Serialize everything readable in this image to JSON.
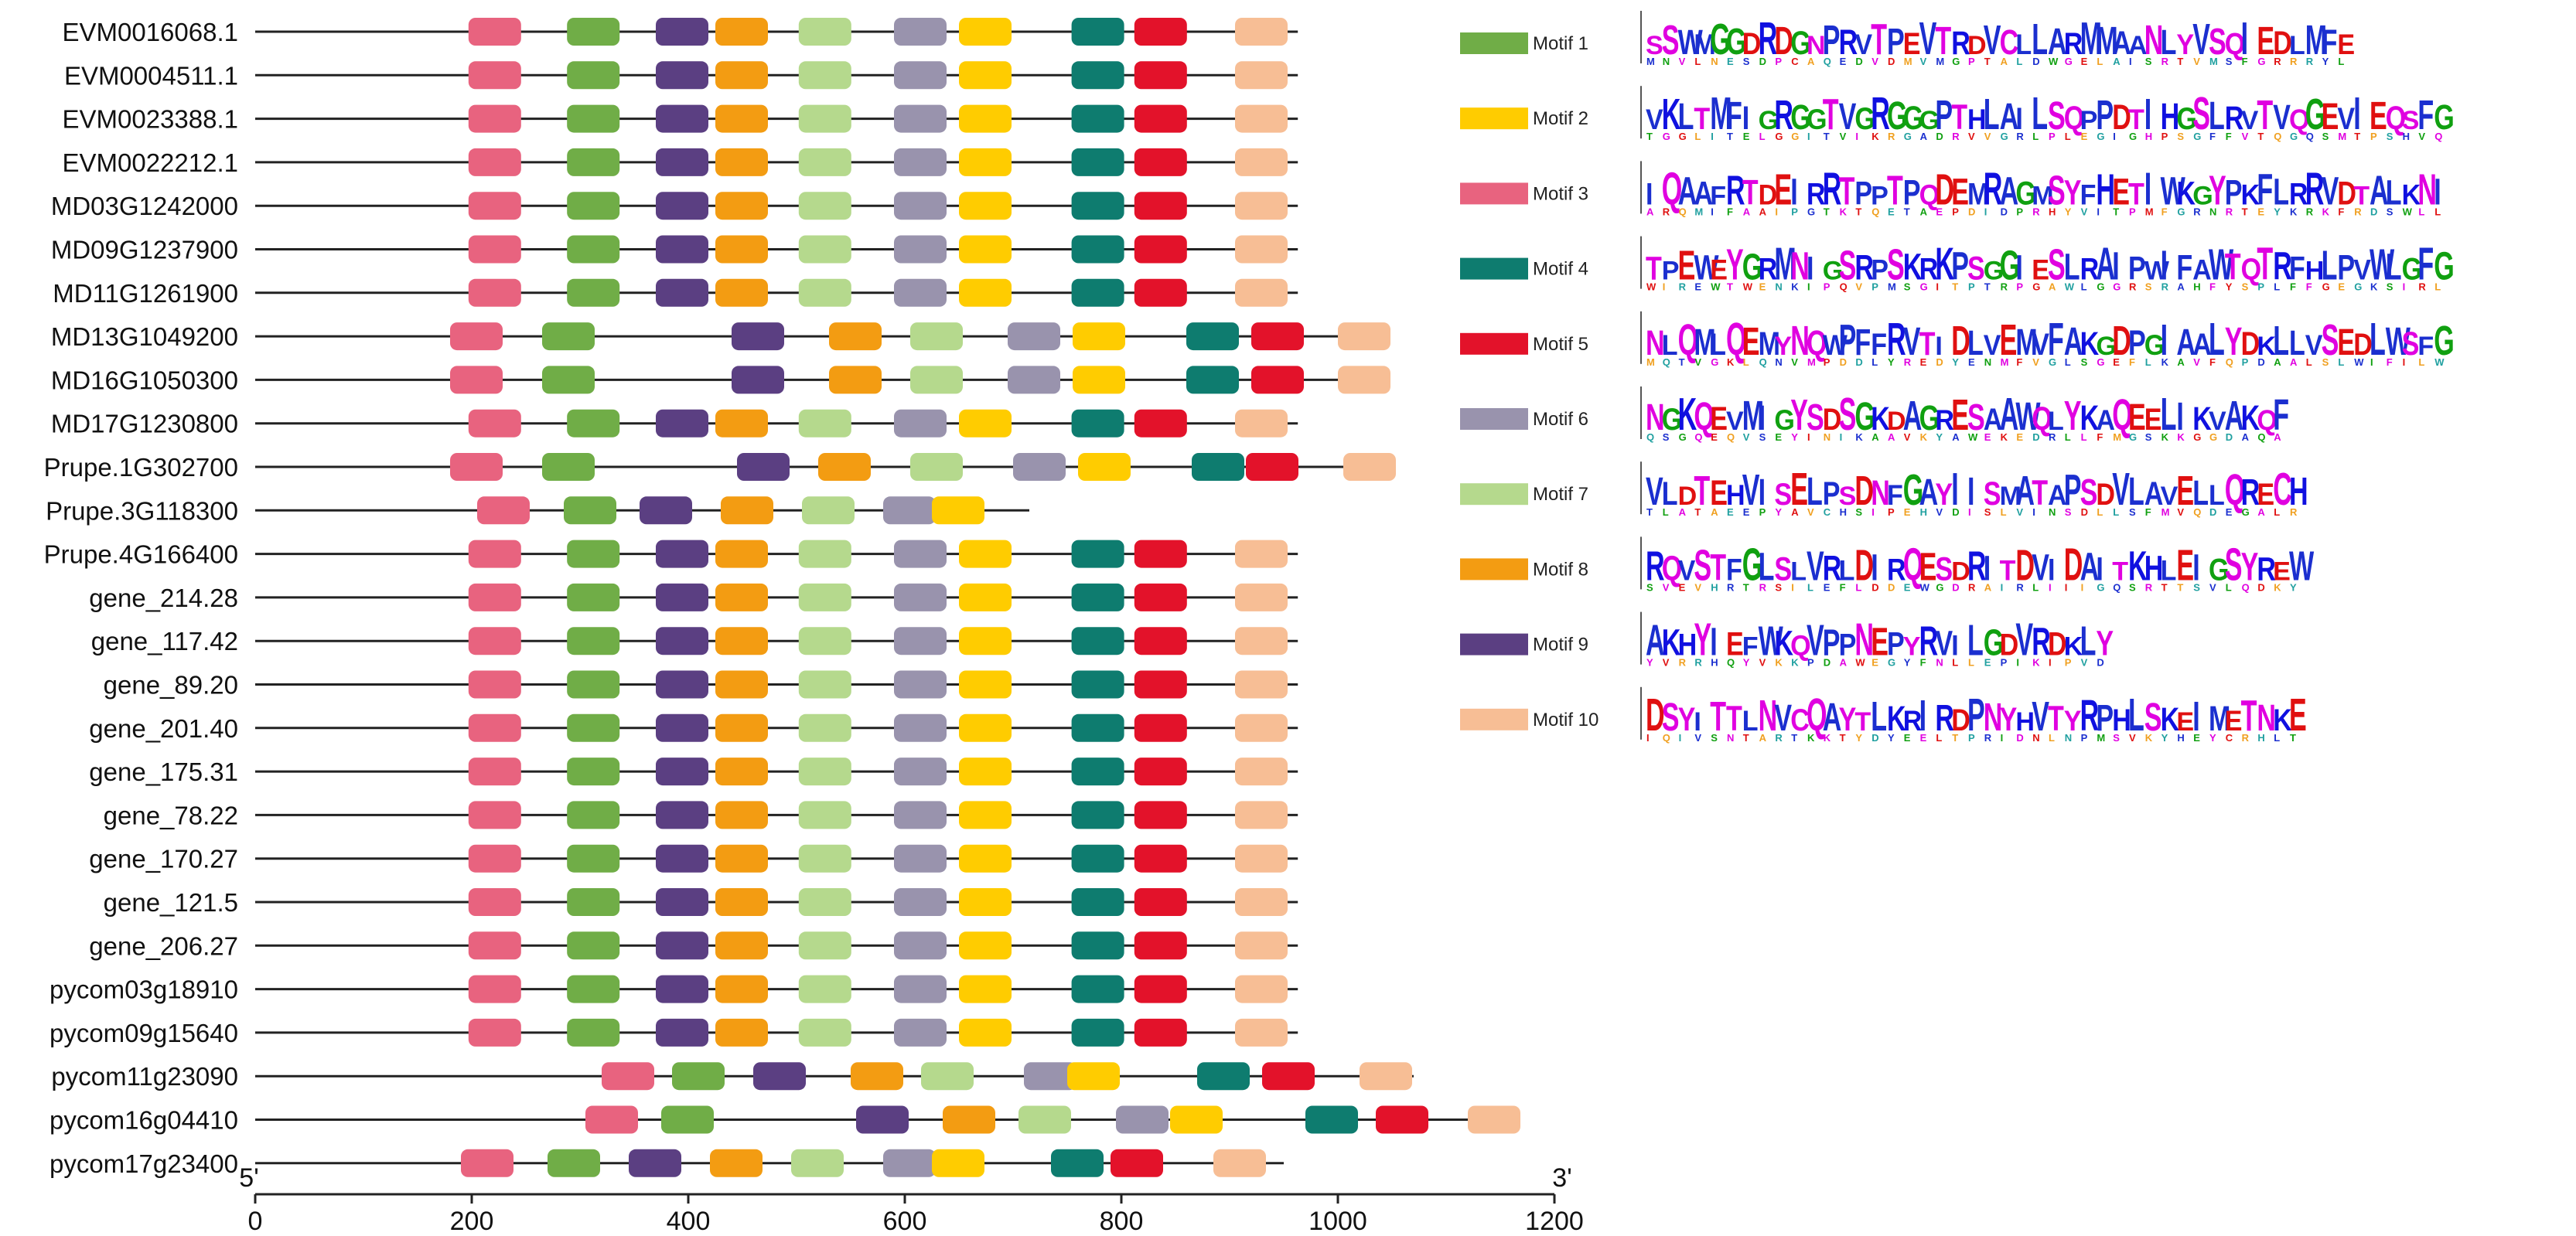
{
  "chart_data": {
    "type": "motif-diagram",
    "x_axis": {
      "min": 0,
      "max": 1200,
      "ticks": [
        0,
        200,
        400,
        600,
        800,
        1000,
        1200
      ],
      "end_labels": {
        "left": "5'",
        "right": "3'"
      }
    },
    "motifs": [
      {
        "id": 1,
        "name": "Motif 1",
        "color": "#70AD47",
        "seq": "SSWMGGDRDGNPRVTPEVTRDVCLLARMMAANLYVSQIEDLMFE"
      },
      {
        "id": 2,
        "name": "Motif 2",
        "color": "#FFCC00",
        "seq": "VKLTMFIGRGGTVGRGGGPTHLAILSQPPDTIHGSLRVTVQGEVIEQSFG"
      },
      {
        "id": 3,
        "name": "Motif 3",
        "color": "#E8637F",
        "seq": "IQAAFRTDEIRRTPPTPQDEMRAGMSYFHETIWKGYPKFLRRVDTALKNI"
      },
      {
        "id": 4,
        "name": "Motif 4",
        "color": "#0E7C6F",
        "seq": "TPEWEYGRMNIGSRPSKRKPSGGIESLRAIPWIFAWTQTRFHLPVWLGFG"
      },
      {
        "id": 5,
        "name": "Motif 5",
        "color": "#E3122A",
        "seq": "NLQMLQEMYNQWPFFRVTIDLVEMVFAKGDPGIAALYDKLLVSEDLWSFG"
      },
      {
        "id": 6,
        "name": "Motif 6",
        "color": "#9993AD",
        "seq": "NGKQEVMIGYSDSGKDAGRESAAWQLYKAQEELIKVAKQF"
      },
      {
        "id": 7,
        "name": "Motif 7",
        "color": "#B5D98D",
        "seq": "VLDTEHVISELPSDNFGAYIISMATAPSDVLAVELLQRECH"
      },
      {
        "id": 8,
        "name": "Motif 8",
        "color": "#F39C12",
        "seq": "RQVSTFGLSLVRLDIRQESDRITDVIDAITKHLEIGSYREW"
      },
      {
        "id": 9,
        "name": "Motif 9",
        "color": "#5B3F82",
        "seq": "AKHYIEFWKQVPPNEPYRVILGDVRDKLY"
      },
      {
        "id": 10,
        "name": "Motif 10",
        "color": "#F7BE95",
        "seq": "DSYITTLNVCQAYTLKRIRDPNYHVTYRPHLSKEIMETNKE"
      }
    ],
    "genes": [
      {
        "name": "EVM0016068.1",
        "length": 963,
        "motifs": [
          [
            3,
            197
          ],
          [
            1,
            288
          ],
          [
            9,
            370
          ],
          [
            8,
            425
          ],
          [
            7,
            502
          ],
          [
            6,
            590
          ],
          [
            2,
            650
          ],
          [
            4,
            754
          ],
          [
            5,
            812
          ],
          [
            10,
            905
          ]
        ]
      },
      {
        "name": "EVM0004511.1",
        "length": 963,
        "motifs": [
          [
            3,
            197
          ],
          [
            1,
            288
          ],
          [
            9,
            370
          ],
          [
            8,
            425
          ],
          [
            7,
            502
          ],
          [
            6,
            590
          ],
          [
            2,
            650
          ],
          [
            4,
            754
          ],
          [
            5,
            812
          ],
          [
            10,
            905
          ]
        ]
      },
      {
        "name": "EVM0023388.1",
        "length": 963,
        "motifs": [
          [
            3,
            197
          ],
          [
            1,
            288
          ],
          [
            9,
            370
          ],
          [
            8,
            425
          ],
          [
            7,
            502
          ],
          [
            6,
            590
          ],
          [
            2,
            650
          ],
          [
            4,
            754
          ],
          [
            5,
            812
          ],
          [
            10,
            905
          ]
        ]
      },
      {
        "name": "EVM0022212.1",
        "length": 963,
        "motifs": [
          [
            3,
            197
          ],
          [
            1,
            288
          ],
          [
            9,
            370
          ],
          [
            8,
            425
          ],
          [
            7,
            502
          ],
          [
            6,
            590
          ],
          [
            2,
            650
          ],
          [
            4,
            754
          ],
          [
            5,
            812
          ],
          [
            10,
            905
          ]
        ]
      },
      {
        "name": "MD03G1242000",
        "length": 963,
        "motifs": [
          [
            3,
            197
          ],
          [
            1,
            288
          ],
          [
            9,
            370
          ],
          [
            8,
            425
          ],
          [
            7,
            502
          ],
          [
            6,
            590
          ],
          [
            2,
            650
          ],
          [
            4,
            754
          ],
          [
            5,
            812
          ],
          [
            10,
            905
          ]
        ]
      },
      {
        "name": "MD09G1237900",
        "length": 963,
        "motifs": [
          [
            3,
            197
          ],
          [
            1,
            288
          ],
          [
            9,
            370
          ],
          [
            8,
            425
          ],
          [
            7,
            502
          ],
          [
            6,
            590
          ],
          [
            2,
            650
          ],
          [
            4,
            754
          ],
          [
            5,
            812
          ],
          [
            10,
            905
          ]
        ]
      },
      {
        "name": "MD11G1261900",
        "length": 963,
        "motifs": [
          [
            3,
            197
          ],
          [
            1,
            288
          ],
          [
            9,
            370
          ],
          [
            8,
            425
          ],
          [
            7,
            502
          ],
          [
            6,
            590
          ],
          [
            2,
            650
          ],
          [
            4,
            754
          ],
          [
            5,
            812
          ],
          [
            10,
            905
          ]
        ]
      },
      {
        "name": "MD13G1049200",
        "length": 1040,
        "motifs": [
          [
            3,
            180
          ],
          [
            1,
            265
          ],
          [
            9,
            440
          ],
          [
            8,
            530
          ],
          [
            7,
            605
          ],
          [
            6,
            695
          ],
          [
            2,
            755
          ],
          [
            4,
            860
          ],
          [
            5,
            920
          ],
          [
            10,
            1000
          ]
        ]
      },
      {
        "name": "MD16G1050300",
        "length": 1040,
        "motifs": [
          [
            3,
            180
          ],
          [
            1,
            265
          ],
          [
            9,
            440
          ],
          [
            8,
            530
          ],
          [
            7,
            605
          ],
          [
            6,
            695
          ],
          [
            2,
            755
          ],
          [
            4,
            860
          ],
          [
            5,
            920
          ],
          [
            10,
            1000
          ]
        ]
      },
      {
        "name": "MD17G1230800",
        "length": 963,
        "motifs": [
          [
            3,
            197
          ],
          [
            1,
            288
          ],
          [
            9,
            370
          ],
          [
            8,
            425
          ],
          [
            7,
            502
          ],
          [
            6,
            590
          ],
          [
            2,
            650
          ],
          [
            4,
            754
          ],
          [
            5,
            812
          ],
          [
            10,
            905
          ]
        ]
      },
      {
        "name": "Prupe.1G302700",
        "length": 1045,
        "motifs": [
          [
            3,
            180
          ],
          [
            1,
            265
          ],
          [
            9,
            445
          ],
          [
            8,
            520
          ],
          [
            7,
            605
          ],
          [
            6,
            700
          ],
          [
            2,
            760
          ],
          [
            4,
            865
          ],
          [
            5,
            915
          ],
          [
            10,
            1005
          ]
        ]
      },
      {
        "name": "Prupe.3G118300",
        "length": 715,
        "motifs": [
          [
            3,
            205
          ],
          [
            1,
            285
          ],
          [
            9,
            355
          ],
          [
            8,
            430
          ],
          [
            7,
            505
          ],
          [
            6,
            580
          ],
          [
            2,
            625
          ]
        ]
      },
      {
        "name": "Prupe.4G166400",
        "length": 963,
        "motifs": [
          [
            3,
            197
          ],
          [
            1,
            288
          ],
          [
            9,
            370
          ],
          [
            8,
            425
          ],
          [
            7,
            502
          ],
          [
            6,
            590
          ],
          [
            2,
            650
          ],
          [
            4,
            754
          ],
          [
            5,
            812
          ],
          [
            10,
            905
          ]
        ]
      },
      {
        "name": "gene_214.28",
        "length": 963,
        "motifs": [
          [
            3,
            197
          ],
          [
            1,
            288
          ],
          [
            9,
            370
          ],
          [
            8,
            425
          ],
          [
            7,
            502
          ],
          [
            6,
            590
          ],
          [
            2,
            650
          ],
          [
            4,
            754
          ],
          [
            5,
            812
          ],
          [
            10,
            905
          ]
        ]
      },
      {
        "name": "gene_117.42",
        "length": 963,
        "motifs": [
          [
            3,
            197
          ],
          [
            1,
            288
          ],
          [
            9,
            370
          ],
          [
            8,
            425
          ],
          [
            7,
            502
          ],
          [
            6,
            590
          ],
          [
            2,
            650
          ],
          [
            4,
            754
          ],
          [
            5,
            812
          ],
          [
            10,
            905
          ]
        ]
      },
      {
        "name": "gene_89.20",
        "length": 963,
        "motifs": [
          [
            3,
            197
          ],
          [
            1,
            288
          ],
          [
            9,
            370
          ],
          [
            8,
            425
          ],
          [
            7,
            502
          ],
          [
            6,
            590
          ],
          [
            2,
            650
          ],
          [
            4,
            754
          ],
          [
            5,
            812
          ],
          [
            10,
            905
          ]
        ]
      },
      {
        "name": "gene_201.40",
        "length": 963,
        "motifs": [
          [
            3,
            197
          ],
          [
            1,
            288
          ],
          [
            9,
            370
          ],
          [
            8,
            425
          ],
          [
            7,
            502
          ],
          [
            6,
            590
          ],
          [
            2,
            650
          ],
          [
            4,
            754
          ],
          [
            5,
            812
          ],
          [
            10,
            905
          ]
        ]
      },
      {
        "name": "gene_175.31",
        "length": 963,
        "motifs": [
          [
            3,
            197
          ],
          [
            1,
            288
          ],
          [
            9,
            370
          ],
          [
            8,
            425
          ],
          [
            7,
            502
          ],
          [
            6,
            590
          ],
          [
            2,
            650
          ],
          [
            4,
            754
          ],
          [
            5,
            812
          ],
          [
            10,
            905
          ]
        ]
      },
      {
        "name": "gene_78.22",
        "length": 963,
        "motifs": [
          [
            3,
            197
          ],
          [
            1,
            288
          ],
          [
            9,
            370
          ],
          [
            8,
            425
          ],
          [
            7,
            502
          ],
          [
            6,
            590
          ],
          [
            2,
            650
          ],
          [
            4,
            754
          ],
          [
            5,
            812
          ],
          [
            10,
            905
          ]
        ]
      },
      {
        "name": "gene_170.27",
        "length": 963,
        "motifs": [
          [
            3,
            197
          ],
          [
            1,
            288
          ],
          [
            9,
            370
          ],
          [
            8,
            425
          ],
          [
            7,
            502
          ],
          [
            6,
            590
          ],
          [
            2,
            650
          ],
          [
            4,
            754
          ],
          [
            5,
            812
          ],
          [
            10,
            905
          ]
        ]
      },
      {
        "name": "gene_121.5",
        "length": 963,
        "motifs": [
          [
            3,
            197
          ],
          [
            1,
            288
          ],
          [
            9,
            370
          ],
          [
            8,
            425
          ],
          [
            7,
            502
          ],
          [
            6,
            590
          ],
          [
            2,
            650
          ],
          [
            4,
            754
          ],
          [
            5,
            812
          ],
          [
            10,
            905
          ]
        ]
      },
      {
        "name": "gene_206.27",
        "length": 963,
        "motifs": [
          [
            3,
            197
          ],
          [
            1,
            288
          ],
          [
            9,
            370
          ],
          [
            8,
            425
          ],
          [
            7,
            502
          ],
          [
            6,
            590
          ],
          [
            2,
            650
          ],
          [
            4,
            754
          ],
          [
            5,
            812
          ],
          [
            10,
            905
          ]
        ]
      },
      {
        "name": "pycom03g18910",
        "length": 963,
        "motifs": [
          [
            3,
            197
          ],
          [
            1,
            288
          ],
          [
            9,
            370
          ],
          [
            8,
            425
          ],
          [
            7,
            502
          ],
          [
            6,
            590
          ],
          [
            2,
            650
          ],
          [
            4,
            754
          ],
          [
            5,
            812
          ],
          [
            10,
            905
          ]
        ]
      },
      {
        "name": "pycom09g15640",
        "length": 963,
        "motifs": [
          [
            3,
            197
          ],
          [
            1,
            288
          ],
          [
            9,
            370
          ],
          [
            8,
            425
          ],
          [
            7,
            502
          ],
          [
            6,
            590
          ],
          [
            2,
            650
          ],
          [
            4,
            754
          ],
          [
            5,
            812
          ],
          [
            10,
            905
          ]
        ]
      },
      {
        "name": "pycom11g23090",
        "length": 1070,
        "motifs": [
          [
            3,
            320
          ],
          [
            1,
            385
          ],
          [
            9,
            460
          ],
          [
            8,
            550
          ],
          [
            7,
            615
          ],
          [
            6,
            710
          ],
          [
            2,
            750
          ],
          [
            4,
            870
          ],
          [
            5,
            930
          ],
          [
            10,
            1020
          ]
        ]
      },
      {
        "name": "pycom16g04410",
        "length": 1140,
        "motifs": [
          [
            3,
            305
          ],
          [
            1,
            375
          ],
          [
            9,
            555
          ],
          [
            8,
            635
          ],
          [
            7,
            705
          ],
          [
            6,
            795
          ],
          [
            2,
            845
          ],
          [
            4,
            970
          ],
          [
            5,
            1035
          ],
          [
            10,
            1120
          ]
        ]
      },
      {
        "name": "pycom17g23400",
        "length": 950,
        "motifs": [
          [
            3,
            190
          ],
          [
            1,
            270
          ],
          [
            9,
            345
          ],
          [
            8,
            420
          ],
          [
            7,
            495
          ],
          [
            6,
            580
          ],
          [
            2,
            625
          ],
          [
            4,
            735
          ],
          [
            5,
            790
          ],
          [
            10,
            885
          ]
        ]
      }
    ]
  }
}
